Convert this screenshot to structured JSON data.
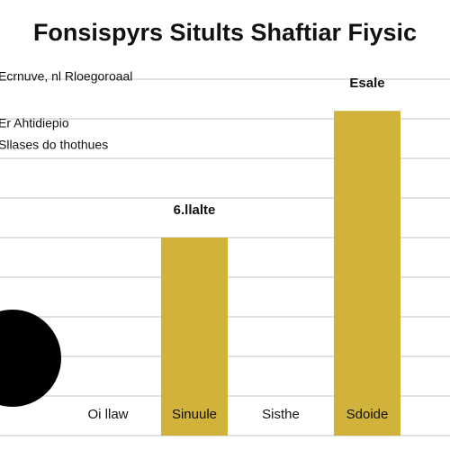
{
  "chart_data": {
    "type": "bar",
    "title": "Fonsispyrs Sitults Shaftiar Fiysic",
    "annotations": [
      "Ecrnuve, nl Rloegoroaal",
      "Er Ahtidiepio",
      "Sllases do thothues",
      "6.llalte",
      "Esale"
    ],
    "categories": [
      "Oi llaw",
      "Sinuule",
      "Sisthe",
      "Sdoide"
    ],
    "values": [
      null,
      50,
      null,
      82
    ],
    "color": "#d1b23a",
    "ylim": [
      0,
      90
    ],
    "yticks": [
      0,
      10,
      20,
      30,
      40,
      50,
      60,
      70,
      80,
      90
    ],
    "grid": true
  }
}
